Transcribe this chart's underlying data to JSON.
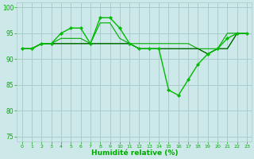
{
  "series_main": [
    92,
    92,
    93,
    93,
    95,
    96,
    96,
    93,
    98,
    98,
    96,
    93,
    92,
    92,
    92,
    84,
    83,
    86,
    89,
    91,
    92,
    94,
    95,
    95
  ],
  "series_flat1": [
    92,
    92,
    93,
    93,
    94,
    94,
    94,
    93,
    97,
    97,
    94,
    93,
    93,
    93,
    93,
    93,
    93,
    93,
    92,
    92,
    92,
    95,
    95,
    95
  ],
  "series_flat2": [
    92,
    92,
    93,
    93,
    93,
    93,
    93,
    93,
    93,
    93,
    93,
    93,
    92,
    92,
    92,
    92,
    92,
    92,
    92,
    91,
    92,
    92,
    95,
    95
  ],
  "series_flat3": [
    92,
    92,
    93,
    93,
    93,
    93,
    93,
    93,
    93,
    93,
    93,
    93,
    92,
    92,
    92,
    92,
    92,
    92,
    92,
    91,
    92,
    92,
    95,
    95
  ],
  "x": [
    0,
    1,
    2,
    3,
    4,
    5,
    6,
    7,
    8,
    9,
    10,
    11,
    12,
    13,
    14,
    15,
    16,
    17,
    18,
    19,
    20,
    21,
    22,
    23
  ],
  "xlabel": "Humidité relative (%)",
  "xlim": [
    -0.5,
    23.5
  ],
  "ylim": [
    74,
    101
  ],
  "yticks": [
    75,
    80,
    85,
    90,
    95,
    100
  ],
  "xticks": [
    0,
    1,
    2,
    3,
    4,
    5,
    6,
    7,
    8,
    9,
    10,
    11,
    12,
    13,
    14,
    15,
    16,
    17,
    18,
    19,
    20,
    21,
    22,
    23
  ],
  "bg_color": "#cce8e8",
  "grid_color": "#aacccc",
  "line_color": "#00bb00",
  "tick_color": "#00aa00",
  "xlabel_color": "#00aa00"
}
